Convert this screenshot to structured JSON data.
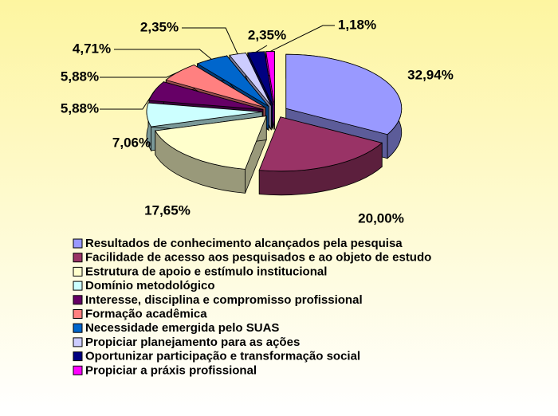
{
  "chart_data": {
    "type": "pie",
    "categories": [
      "Resultados de conhecimento alcançados pela pesquisa",
      "Facilidade de acesso aos pesquisados e ao objeto de estudo",
      "Estrutura de apoio e estímulo institucional",
      "Domínio metodológico",
      "Interesse, disciplina e compromisso profissional",
      "Formação acadêmica",
      "Necessidade emergida pelo SUAS",
      "Propiciar planejamento para as ações",
      "Oportunizar participação e transformação social",
      "Propiciar a práxis profissional"
    ],
    "values": [
      32.94,
      20.0,
      17.65,
      7.06,
      5.88,
      5.88,
      4.71,
      2.35,
      2.35,
      1.18
    ],
    "value_labels": [
      "32,94%",
      "20,00%",
      "17,65%",
      "7,06%",
      "5,88%",
      "5,88%",
      "4,71%",
      "2,35%",
      "2,35%",
      "1,18%"
    ],
    "colors": [
      "#9999ff",
      "#993366",
      "#ffffcc",
      "#ccffff",
      "#660066",
      "#ff8080",
      "#0066cc",
      "#ccccff",
      "#000080",
      "#ff00ff"
    ],
    "legend": "bottom"
  }
}
